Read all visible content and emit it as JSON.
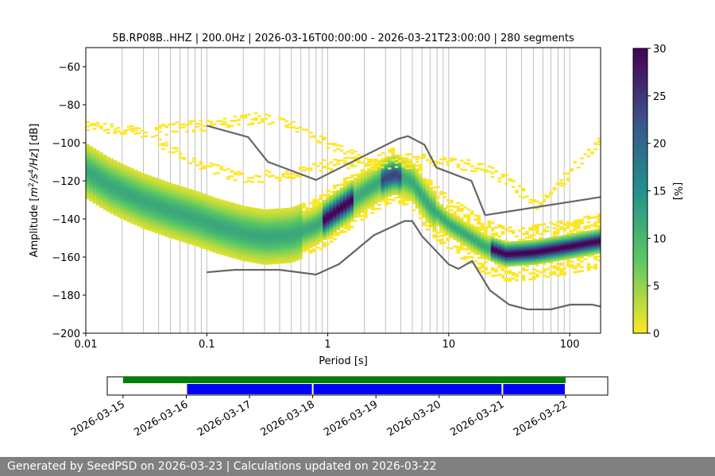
{
  "chart_data": [
    {
      "type": "heatmap",
      "title": "5B.RP08B..HHZ | 200.0Hz | 2026-03-16T00:00:00 - 2026-03-21T23:00:00 | 280 segments",
      "xlabel": "Period [s]",
      "ylabel": "Amplitude [m²/s⁴/Hz] [dB]",
      "x_scale": "log",
      "xlim": [
        0.01,
        180
      ],
      "ylim": [
        -200,
        -50
      ],
      "x_ticks": [
        {
          "value": 0.01,
          "label": "0.01"
        },
        {
          "value": 0.1,
          "label": "0.1"
        },
        {
          "value": 1,
          "label": "1"
        },
        {
          "value": 10,
          "label": "10"
        },
        {
          "value": 100,
          "label": "100"
        }
      ],
      "y_ticks": [
        {
          "value": -60,
          "label": "−60"
        },
        {
          "value": -80,
          "label": "−80"
        },
        {
          "value": -100,
          "label": "−100"
        },
        {
          "value": -120,
          "label": "−120"
        },
        {
          "value": -140,
          "label": "−140"
        },
        {
          "value": -160,
          "label": "−160"
        },
        {
          "value": -180,
          "label": "−180"
        },
        {
          "value": -200,
          "label": "−200"
        }
      ],
      "grid": "vertical log gridlines",
      "colorbar": {
        "label": "[%]",
        "range": [
          0,
          30
        ],
        "ticks": [
          "0",
          "5",
          "10",
          "15",
          "20",
          "25",
          "30"
        ],
        "colormap": "viridis_r"
      },
      "mode_curve": [
        {
          "x": 0.01,
          "y": -114
        },
        {
          "x": 0.015,
          "y": -121
        },
        {
          "x": 0.02,
          "y": -125
        },
        {
          "x": 0.03,
          "y": -130
        },
        {
          "x": 0.05,
          "y": -135
        },
        {
          "x": 0.08,
          "y": -139
        },
        {
          "x": 0.12,
          "y": -143
        },
        {
          "x": 0.2,
          "y": -147
        },
        {
          "x": 0.3,
          "y": -149
        },
        {
          "x": 0.5,
          "y": -148
        },
        {
          "x": 0.8,
          "y": -143
        },
        {
          "x": 1.2,
          "y": -135
        },
        {
          "x": 2,
          "y": -125
        },
        {
          "x": 3,
          "y": -118
        },
        {
          "x": 3.6,
          "y": -116
        },
        {
          "x": 5,
          "y": -120
        },
        {
          "x": 7,
          "y": -133
        },
        {
          "x": 10,
          "y": -142
        },
        {
          "x": 15,
          "y": -149
        },
        {
          "x": 20,
          "y": -154
        },
        {
          "x": 30,
          "y": -158
        },
        {
          "x": 50,
          "y": -157
        },
        {
          "x": 80,
          "y": -155
        },
        {
          "x": 120,
          "y": -153
        },
        {
          "x": 180,
          "y": -151
        }
      ],
      "upper_side_branches": [
        [
          {
            "x": 0.01,
            "y": -91
          },
          {
            "x": 0.03,
            "y": -94
          },
          {
            "x": 0.07,
            "y": -91
          },
          {
            "x": 0.15,
            "y": -89
          },
          {
            "x": 0.3,
            "y": -86
          },
          {
            "x": 0.6,
            "y": -92
          },
          {
            "x": 1.2,
            "y": -103
          },
          {
            "x": 2.5,
            "y": -111
          },
          {
            "x": 5,
            "y": -110
          }
        ],
        [
          {
            "x": 0.04,
            "y": -100
          },
          {
            "x": 0.1,
            "y": -112
          },
          {
            "x": 0.2,
            "y": -118
          },
          {
            "x": 0.5,
            "y": -116
          },
          {
            "x": 1,
            "y": -111
          },
          {
            "x": 2,
            "y": -109
          }
        ],
        [
          {
            "x": 5,
            "y": -108
          },
          {
            "x": 10,
            "y": -110
          },
          {
            "x": 20,
            "y": -112
          },
          {
            "x": 35,
            "y": -122
          },
          {
            "x": 50,
            "y": -132
          },
          {
            "x": 70,
            "y": -128
          },
          {
            "x": 100,
            "y": -115
          },
          {
            "x": 180,
            "y": -98
          }
        ]
      ],
      "noise_models": [
        {
          "name": "high noise model",
          "points": [
            {
              "x": 0.1,
              "y": -91
            },
            {
              "x": 0.22,
              "y": -97
            },
            {
              "x": 0.32,
              "y": -110
            },
            {
              "x": 0.8,
              "y": -119.5
            },
            {
              "x": 3.8,
              "y": -98
            },
            {
              "x": 4.6,
              "y": -96.5
            },
            {
              "x": 6.3,
              "y": -101
            },
            {
              "x": 7.9,
              "y": -113
            },
            {
              "x": 15.4,
              "y": -120
            },
            {
              "x": 20,
              "y": -138
            },
            {
              "x": 180,
              "y": -128.5
            }
          ]
        },
        {
          "name": "low noise model",
          "points": [
            {
              "x": 0.1,
              "y": -168
            },
            {
              "x": 0.17,
              "y": -166.7
            },
            {
              "x": 0.4,
              "y": -166.7
            },
            {
              "x": 0.8,
              "y": -169.2
            },
            {
              "x": 1.24,
              "y": -163.7
            },
            {
              "x": 2.4,
              "y": -148.6
            },
            {
              "x": 4.3,
              "y": -141.1
            },
            {
              "x": 5,
              "y": -141.1
            },
            {
              "x": 6,
              "y": -149
            },
            {
              "x": 10,
              "y": -163.8
            },
            {
              "x": 12,
              "y": -166.2
            },
            {
              "x": 15.6,
              "y": -162.1
            },
            {
              "x": 21.9,
              "y": -177.5
            },
            {
              "x": 31.6,
              "y": -185
            },
            {
              "x": 45,
              "y": -187.5
            },
            {
              "x": 70,
              "y": -187.5
            },
            {
              "x": 101,
              "y": -185
            },
            {
              "x": 154,
              "y": -185
            },
            {
              "x": 180,
              "y": -186
            }
          ]
        }
      ],
      "colors": {
        "line": "#666666",
        "grid": "#b0b0b0"
      }
    },
    {
      "type": "timeline",
      "x_ticks": [
        "2026-03-15",
        "2026-03-16",
        "2026-03-17",
        "2026-03-18",
        "2026-03-19",
        "2026-03-20",
        "2026-03-21",
        "2026-03-22"
      ],
      "range": [
        "2026-03-14T18:00",
        "2026-03-22T16:00"
      ],
      "availability": {
        "color": "#008000",
        "spans": [
          [
            "2026-03-15T00:00",
            "2026-03-22T00:00"
          ]
        ]
      },
      "psd_segments": {
        "color": "#0000ff",
        "spans": [
          [
            "2026-03-16T00:00",
            "2026-03-18T00:00"
          ],
          [
            "2026-03-18T00:00",
            "2026-03-21T00:00"
          ],
          [
            "2026-03-21T00:00",
            "2026-03-22T00:00"
          ]
        ]
      }
    }
  ],
  "footer": "Generated by SeedPSD on 2026-03-23 | Calculations updated on 2026-03-22"
}
